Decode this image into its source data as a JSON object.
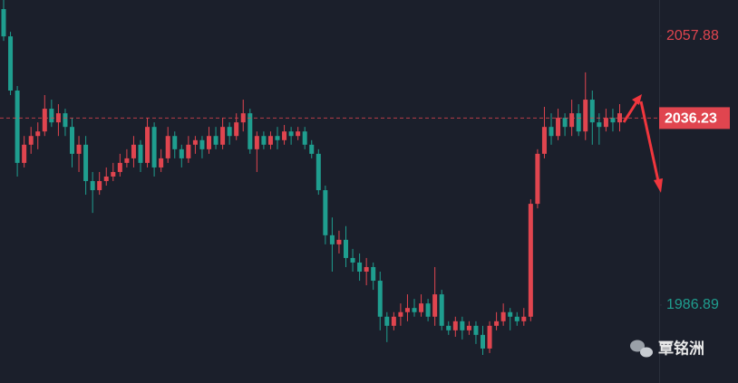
{
  "chart_data": {
    "type": "candlestick",
    "ylim": [
      1966.3,
      2067.4
    ],
    "yticks": [
      2057.88,
      1986.89
    ],
    "last_price": 2036.23,
    "up_color": "#e0454f",
    "down_color": "#1f9e8f",
    "watermark": "覃铭洲",
    "ohlc": [
      [
        2065.0,
        2067.4,
        2056.6,
        2057.8
      ],
      [
        2057.8,
        2059.0,
        2042.3,
        2043.5
      ],
      [
        2043.5,
        2044.7,
        2020.8,
        2024.4
      ],
      [
        2024.4,
        2031.5,
        2023.2,
        2029.2
      ],
      [
        2029.2,
        2033.9,
        2026.8,
        2031.5
      ],
      [
        2031.5,
        2035.1,
        2028.0,
        2032.7
      ],
      [
        2032.7,
        2042.3,
        2031.5,
        2038.7
      ],
      [
        2038.7,
        2041.1,
        2033.9,
        2035.1
      ],
      [
        2035.1,
        2039.9,
        2031.5,
        2037.5
      ],
      [
        2037.5,
        2038.7,
        2031.5,
        2033.9
      ],
      [
        2033.9,
        2036.3,
        2023.2,
        2026.8
      ],
      [
        2026.8,
        2031.5,
        2022.0,
        2029.2
      ],
      [
        2029.2,
        2031.5,
        2016.0,
        2019.6
      ],
      [
        2019.6,
        2022.0,
        2011.2,
        2017.2
      ],
      [
        2017.2,
        2022.0,
        2016.0,
        2019.6
      ],
      [
        2019.6,
        2023.2,
        2018.4,
        2020.8
      ],
      [
        2020.8,
        2024.4,
        2019.6,
        2022.0
      ],
      [
        2022.0,
        2026.8,
        2020.8,
        2024.4
      ],
      [
        2024.4,
        2028.0,
        2023.2,
        2025.6
      ],
      [
        2025.6,
        2031.5,
        2023.2,
        2029.2
      ],
      [
        2029.2,
        2030.4,
        2022.0,
        2024.4
      ],
      [
        2024.4,
        2036.3,
        2023.2,
        2033.9
      ],
      [
        2033.9,
        2035.1,
        2020.8,
        2023.2
      ],
      [
        2023.2,
        2028.0,
        2022.0,
        2025.6
      ],
      [
        2025.6,
        2033.9,
        2024.4,
        2031.5
      ],
      [
        2031.5,
        2032.7,
        2025.6,
        2028.0
      ],
      [
        2028.0,
        2029.2,
        2023.2,
        2025.6
      ],
      [
        2025.6,
        2031.5,
        2024.4,
        2029.2
      ],
      [
        2029.2,
        2031.5,
        2026.8,
        2030.4
      ],
      [
        2030.4,
        2031.5,
        2025.6,
        2028.0
      ],
      [
        2028.0,
        2033.9,
        2026.8,
        2031.5
      ],
      [
        2031.5,
        2033.9,
        2028.0,
        2029.2
      ],
      [
        2029.2,
        2036.3,
        2028.0,
        2033.9
      ],
      [
        2033.9,
        2035.1,
        2029.2,
        2031.5
      ],
      [
        2031.5,
        2037.5,
        2030.4,
        2035.1
      ],
      [
        2035.1,
        2041.1,
        2032.7,
        2037.5
      ],
      [
        2037.5,
        2038.7,
        2026.8,
        2028.0
      ],
      [
        2028.0,
        2032.7,
        2022.0,
        2031.5
      ],
      [
        2031.5,
        2032.7,
        2028.0,
        2029.2
      ],
      [
        2029.2,
        2032.7,
        2028.0,
        2031.5
      ],
      [
        2031.5,
        2033.9,
        2028.0,
        2030.4
      ],
      [
        2030.4,
        2034.4,
        2029.2,
        2032.7
      ],
      [
        2032.7,
        2033.9,
        2029.2,
        2031.5
      ],
      [
        2031.5,
        2033.9,
        2030.4,
        2032.7
      ],
      [
        2032.7,
        2033.9,
        2028.0,
        2029.2
      ],
      [
        2029.2,
        2030.4,
        2025.6,
        2026.8
      ],
      [
        2026.8,
        2028.0,
        2016.0,
        2017.2
      ],
      [
        2017.2,
        2018.4,
        2002.9,
        2005.3
      ],
      [
        2005.3,
        2010.0,
        1995.7,
        2002.9
      ],
      [
        2002.9,
        2006.5,
        2000.5,
        2004.1
      ],
      [
        2004.1,
        2007.7,
        1996.9,
        1999.3
      ],
      [
        1999.3,
        2001.7,
        1995.7,
        1998.1
      ],
      [
        1998.1,
        2000.5,
        1993.3,
        1995.7
      ],
      [
        1995.7,
        1999.3,
        1992.1,
        1996.9
      ],
      [
        1996.9,
        1998.1,
        1990.9,
        1993.3
      ],
      [
        1993.3,
        1995.7,
        1980.2,
        1983.8
      ],
      [
        1983.8,
        1985.0,
        1977.1,
        1981.4
      ],
      [
        1981.4,
        1985.0,
        1980.2,
        1983.8
      ],
      [
        1983.8,
        1987.3,
        1981.4,
        1985.0
      ],
      [
        1985.0,
        1989.7,
        1982.6,
        1986.1
      ],
      [
        1986.1,
        1988.5,
        1983.8,
        1985.0
      ],
      [
        1985.0,
        1989.7,
        1983.8,
        1987.3
      ],
      [
        1987.3,
        1988.5,
        1982.6,
        1983.8
      ],
      [
        1983.8,
        1996.9,
        1981.4,
        1989.7
      ],
      [
        1989.7,
        1990.9,
        1980.2,
        1981.4
      ],
      [
        1981.4,
        1982.6,
        1979.0,
        1980.2
      ],
      [
        1980.2,
        1983.8,
        1978.5,
        1982.6
      ],
      [
        1982.6,
        1983.8,
        1977.8,
        1980.2
      ],
      [
        1980.2,
        1982.6,
        1979.0,
        1981.4
      ],
      [
        1981.4,
        1982.6,
        1976.6,
        1979.0
      ],
      [
        1979.0,
        1981.4,
        1973.7,
        1975.4
      ],
      [
        1975.4,
        1982.6,
        1974.2,
        1981.4
      ],
      [
        1981.4,
        1985.0,
        1980.2,
        1982.6
      ],
      [
        1982.6,
        1987.3,
        1981.4,
        1985.0
      ],
      [
        1985.0,
        1986.1,
        1980.2,
        1983.8
      ],
      [
        1983.8,
        1985.0,
        1981.4,
        1982.6
      ],
      [
        1982.6,
        1986.1,
        1981.4,
        1983.8
      ],
      [
        1983.8,
        2014.8,
        1982.6,
        2013.6
      ],
      [
        2013.6,
        2028.0,
        2012.4,
        2026.8
      ],
      [
        2026.8,
        2039.2,
        2025.6,
        2033.9
      ],
      [
        2033.9,
        2037.5,
        2029.2,
        2031.5
      ],
      [
        2031.5,
        2038.7,
        2030.4,
        2036.3
      ],
      [
        2036.3,
        2037.5,
        2031.5,
        2033.9
      ],
      [
        2033.9,
        2041.1,
        2031.5,
        2037.5
      ],
      [
        2037.5,
        2039.9,
        2031.5,
        2032.7
      ],
      [
        2032.7,
        2048.3,
        2030.4,
        2041.1
      ],
      [
        2041.1,
        2043.5,
        2029.2,
        2035.1
      ],
      [
        2035.1,
        2037.5,
        2029.2,
        2033.9
      ],
      [
        2033.9,
        2038.7,
        2032.7,
        2036.3
      ],
      [
        2036.3,
        2038.7,
        2032.7,
        2035.1
      ],
      [
        2035.1,
        2039.9,
        2032.7,
        2037.5
      ]
    ]
  }
}
